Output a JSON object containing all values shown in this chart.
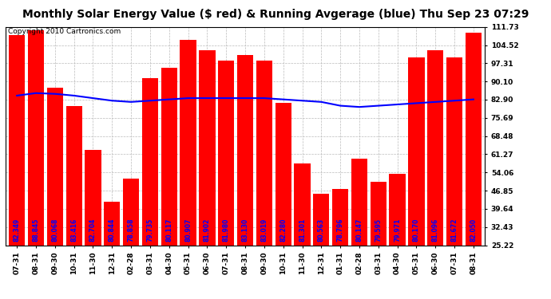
{
  "title": "Monthly Solar Energy Value ($ red) & Running Avgerage (blue) Thu Sep 23 07:29",
  "copyright": "Copyright 2010 Cartronics.com",
  "categories": [
    "07-31",
    "08-31",
    "09-30",
    "10-31",
    "11-30",
    "12-31",
    "02-28",
    "03-31",
    "04-30",
    "05-31",
    "06-30",
    "07-31",
    "08-31",
    "09-30",
    "10-31",
    "11-30",
    "12-31",
    "01-31",
    "02-28",
    "03-31",
    "04-30",
    "05-31",
    "06-30",
    "07-31",
    "08-31"
  ],
  "bar_heights": [
    108.5,
    110.5,
    87.5,
    80.5,
    63.0,
    42.5,
    51.5,
    91.5,
    95.5,
    106.5,
    102.5,
    98.5,
    100.5,
    98.5,
    81.5,
    57.5,
    45.5,
    47.5,
    59.5,
    50.5,
    53.5,
    99.5,
    102.5,
    99.5,
    109.5
  ],
  "bar_labels": [
    "82.349",
    "88.845",
    "80.068",
    "83.416",
    "82.704",
    "80.844",
    "78.858",
    "79.735",
    "80.117",
    "80.907",
    "81.902",
    "81.980",
    "83.130",
    "83.019",
    "82.280",
    "81.301",
    "80.563",
    "78.796",
    "80.147",
    "79.595",
    "79.971",
    "80.170",
    "81.096",
    "81.672",
    "82.050"
  ],
  "running_avg": [
    84.5,
    85.5,
    85.2,
    84.5,
    83.5,
    82.5,
    82.0,
    82.5,
    83.0,
    83.5,
    83.5,
    83.5,
    83.5,
    83.5,
    83.0,
    82.5,
    82.0,
    80.5,
    80.0,
    80.5,
    81.0,
    81.5,
    82.0,
    82.5,
    83.0
  ],
  "bar_color": "#FF0000",
  "line_color": "#0000FF",
  "background_color": "#FFFFFF",
  "grid_color": "#BBBBBB",
  "label_color": "#0000FF",
  "ylim": [
    25.22,
    111.73
  ],
  "yticks": [
    25.22,
    32.43,
    39.64,
    46.85,
    54.06,
    61.27,
    68.48,
    75.69,
    82.9,
    90.1,
    97.31,
    104.52,
    111.73
  ],
  "title_fontsize": 10,
  "copyright_fontsize": 6.5,
  "value_fontsize": 5.5,
  "tick_fontsize": 6.5
}
